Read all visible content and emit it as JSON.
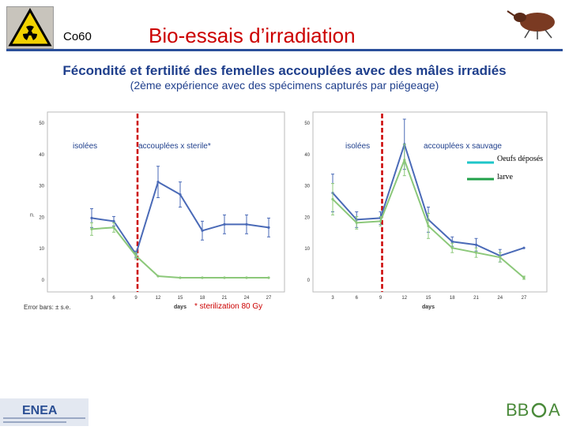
{
  "header": {
    "isotope": "Co60",
    "title": "Bio-essais d’irradiation",
    "subtitle": "Fécondité et fertilité des femelles accouplées avec des mâles irradiés",
    "subsubtitle": "(2ème expérience avec des spécimens capturés par piégeage)"
  },
  "colors": {
    "title": "#cc0000",
    "subtitle": "#1f3f8c",
    "eggs": "#4a6ab7",
    "larvae": "#8cc87a",
    "divider": "#cc0000",
    "header_line": "#2a4f9b"
  },
  "chart_data": [
    {
      "type": "line",
      "panel": "left",
      "xlabel": "days",
      "ylabel": "n.",
      "ylim": [
        0,
        50
      ],
      "yticks": [
        "0",
        "10",
        "20",
        "30",
        "40",
        "50"
      ],
      "x": [
        3,
        6,
        9,
        12,
        15,
        18,
        21,
        24,
        27
      ],
      "xticks": [
        "3",
        "6",
        "9",
        "12",
        "15",
        "18",
        "21",
        "24",
        "27"
      ],
      "region_labels": [
        "isolées",
        "accouplées x sterile*"
      ],
      "divider_after_x": 9,
      "series": [
        {
          "color": "#4a6ab7",
          "values": [
            19.5,
            18.5,
            8,
            31,
            27,
            15.5,
            17.5,
            17.5,
            16.5
          ],
          "errors": [
            3,
            1.5,
            1,
            5,
            4,
            3,
            3,
            3,
            3
          ]
        },
        {
          "color": "#8cc87a",
          "values": [
            16,
            16.5,
            7.5,
            1,
            0.5,
            0.5,
            0.5,
            0.5,
            0.5
          ],
          "errors": [
            2,
            1.5,
            1,
            0,
            0,
            0,
            0,
            0,
            0
          ]
        }
      ]
    },
    {
      "type": "line",
      "panel": "right",
      "xlabel": "days",
      "ylim": [
        0,
        50
      ],
      "yticks": [
        "0",
        "10",
        "20",
        "30",
        "40",
        "50"
      ],
      "x": [
        3,
        6,
        9,
        12,
        15,
        18,
        21,
        24,
        27
      ],
      "xticks": [
        "3",
        "6",
        "9",
        "12",
        "15",
        "18",
        "21",
        "24",
        "27"
      ],
      "region_labels": [
        "isolées",
        "accouplées x sauvage"
      ],
      "divider_after_x": 9,
      "legend": {
        "position": "top-right",
        "entries": [
          {
            "label": "Oeufs déposés",
            "color": "#1ec6c9"
          },
          {
            "label": "larve",
            "color": "#21a04a"
          }
        ]
      },
      "series": [
        {
          "color": "#4a6ab7",
          "values": [
            27.5,
            19,
            19.5,
            43,
            19,
            12,
            11,
            7.5,
            10
          ],
          "errors": [
            6,
            2.5,
            2,
            8,
            4,
            1.5,
            2,
            2,
            0
          ]
        },
        {
          "color": "#8cc87a",
          "values": [
            25.5,
            18,
            18.5,
            38,
            17,
            10,
            8.5,
            7,
            0.5
          ],
          "errors": [
            5,
            2,
            1.5,
            5,
            4,
            1.5,
            1.5,
            1.5,
            0.5
          ]
        }
      ]
    }
  ],
  "notes": {
    "error_bars": "Error bars: ± s.e.",
    "footnote": "* sterilization 80 Gy"
  }
}
